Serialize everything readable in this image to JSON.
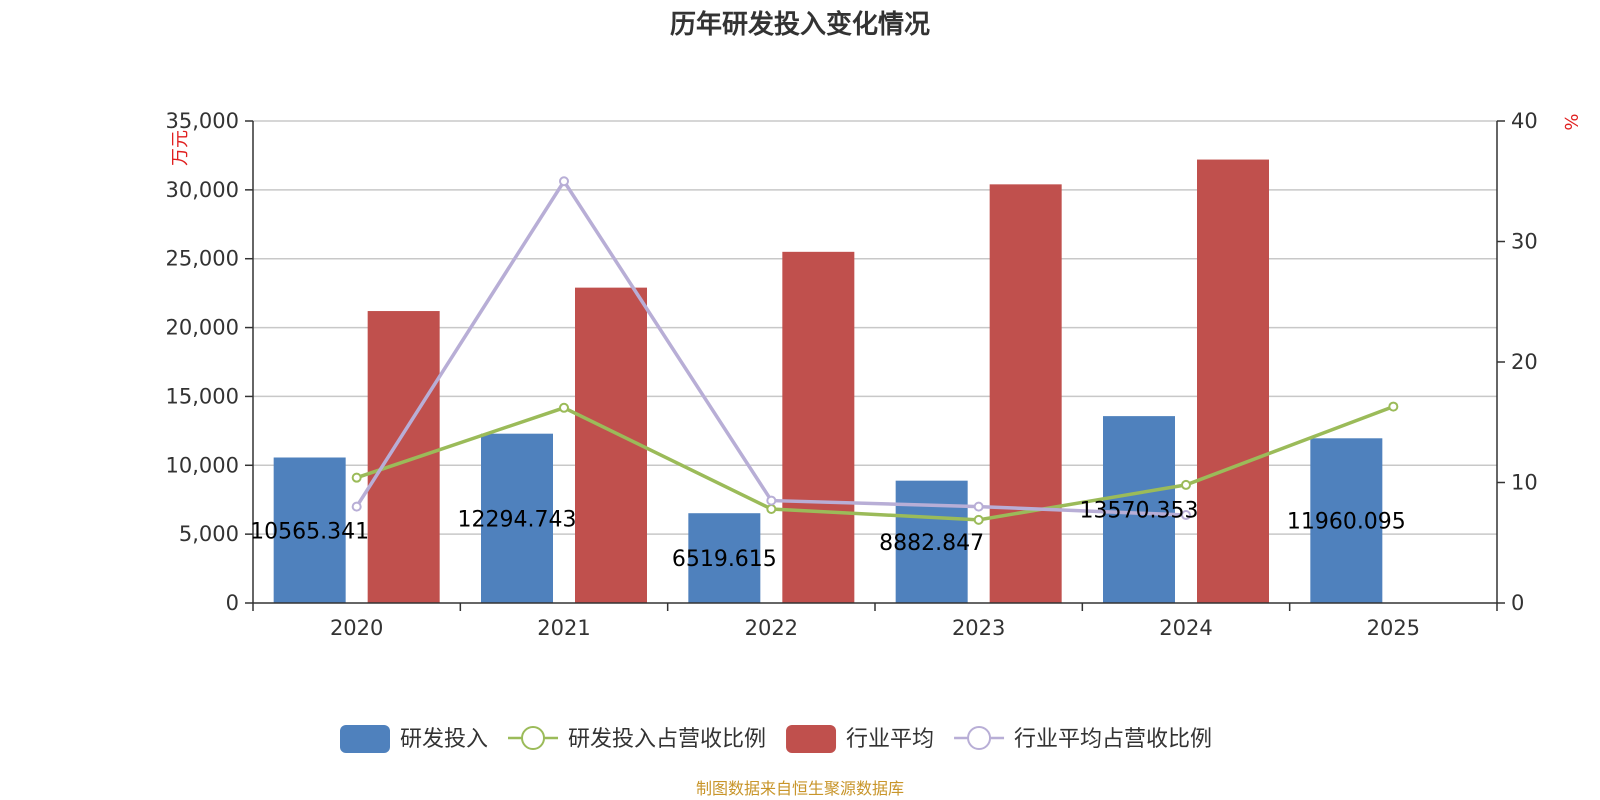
{
  "chart_data": {
    "type": "bar",
    "title": "历年研发投入变化情况",
    "categories": [
      "2020",
      "2021",
      "2022",
      "2023",
      "2024",
      "2025"
    ],
    "y_left": {
      "unit": "万元",
      "ylim": [
        0,
        35000
      ],
      "ticks": [
        "0",
        "5,000",
        "10,000",
        "15,000",
        "20,000",
        "25,000",
        "30,000",
        "35,000"
      ]
    },
    "y_right": {
      "unit": "%",
      "ylim": [
        0,
        40
      ],
      "ticks": [
        "0",
        "10",
        "20",
        "30",
        "40"
      ]
    },
    "grid": true,
    "legend_position": "bottom-center",
    "series": [
      {
        "name": "研发投入",
        "type": "bar",
        "axis": "left",
        "color": "#4f81bd",
        "values": [
          10565.341,
          12294.743,
          6519.615,
          8882.847,
          13570.353,
          11960.095
        ],
        "labels": [
          "10565.341",
          "12294.743",
          "6519.615",
          "8882.847",
          "13570.353",
          "11960.095"
        ]
      },
      {
        "name": "研发投入占营收比例",
        "type": "line",
        "axis": "right",
        "color": "#9bbb59",
        "values": [
          10.4,
          16.2,
          7.8,
          6.9,
          9.8,
          16.3
        ]
      },
      {
        "name": "行业平均",
        "type": "bar",
        "axis": "left",
        "color": "#c0504d",
        "values": [
          21200,
          22900,
          25500,
          30400,
          32200,
          null
        ]
      },
      {
        "name": "行业平均占营收比例",
        "type": "line",
        "axis": "right",
        "color": "#b8aed6",
        "values": [
          8.0,
          35.0,
          8.5,
          8.0,
          7.3,
          null
        ]
      }
    ],
    "source": "制图数据来自恒生聚源数据库"
  }
}
